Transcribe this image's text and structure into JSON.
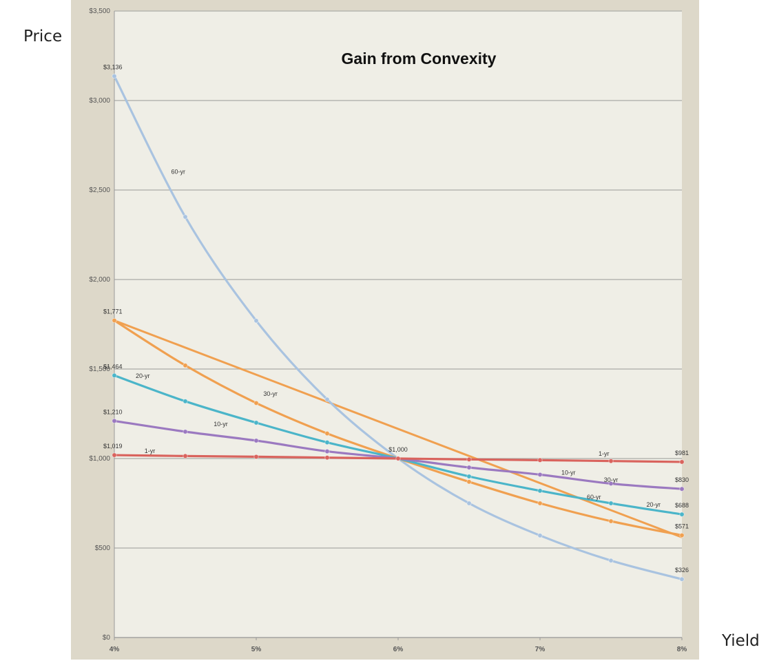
{
  "page": {
    "outer_y_label": "Price",
    "outer_x_label": "Yield"
  },
  "chart_data": {
    "type": "line",
    "title": "Gain from Convexity",
    "xlabel": "",
    "ylabel": "",
    "x": [
      4.0,
      4.5,
      5.0,
      5.5,
      6.0,
      6.5,
      7.0,
      7.5,
      8.0
    ],
    "x_ticks": [
      4,
      5,
      6,
      7,
      8
    ],
    "x_tick_labels": [
      "4%",
      "5%",
      "6%",
      "7%",
      "8%"
    ],
    "ylim": [
      0,
      3500
    ],
    "y_ticks": [
      0,
      500,
      1000,
      1500,
      2000,
      2500,
      3000,
      3500
    ],
    "y_tick_labels": [
      "$0",
      "$500",
      "$1,000",
      "$1,500",
      "$2,000",
      "$2,500",
      "$3,000",
      "$3,500"
    ],
    "grid": true,
    "colors": {
      "plot_background": "#efeee6",
      "outer_background": "#ddd8c9",
      "gridline": "#b5b5b0"
    },
    "series": [
      {
        "name": "60-yr",
        "color": "#a9c3e0",
        "values": [
          3136,
          2350,
          1770,
          1330,
          1000,
          750,
          570,
          430,
          326
        ]
      },
      {
        "name": "30-yr",
        "color": "#f0a050",
        "values": [
          1771,
          1520,
          1310,
          1140,
          1000,
          870,
          750,
          650,
          571
        ]
      },
      {
        "name": "20-yr",
        "color": "#4bb5c9",
        "values": [
          1464,
          1320,
          1200,
          1090,
          1000,
          900,
          820,
          750,
          688
        ]
      },
      {
        "name": "10-yr",
        "color": "#9b79c0",
        "values": [
          1210,
          1150,
          1100,
          1040,
          1000,
          950,
          910,
          860,
          830
        ]
      },
      {
        "name": "1-yr",
        "color": "#d9635d",
        "values": [
          1019,
          1014,
          1010,
          1005,
          1000,
          995,
          991,
          986,
          981
        ]
      }
    ],
    "extra_line": {
      "color": "#f0a050",
      "x": [
        4,
        8
      ],
      "values": [
        1771,
        560
      ]
    },
    "data_labels": [
      {
        "x": 4,
        "y": 3136,
        "text": "$3,136"
      },
      {
        "x": 4,
        "y": 1771,
        "text": "$1,771"
      },
      {
        "x": 4,
        "y": 1464,
        "text": "$1,464"
      },
      {
        "x": 4,
        "y": 1210,
        "text": "$1,210"
      },
      {
        "x": 4,
        "y": 1019,
        "text": "$1,019"
      },
      {
        "x": 6,
        "y": 1000,
        "text": "$1,000"
      },
      {
        "x": 8,
        "y": 981,
        "text": "$981"
      },
      {
        "x": 8,
        "y": 830,
        "text": "$830"
      },
      {
        "x": 8,
        "y": 688,
        "text": "$688"
      },
      {
        "x": 8,
        "y": 571,
        "text": "$571"
      },
      {
        "x": 8,
        "y": 326,
        "text": "$326"
      }
    ],
    "series_labels": [
      {
        "x": 4.45,
        "y": 2590,
        "text": "60-yr"
      },
      {
        "x": 7.38,
        "y": 773,
        "text": "60-yr"
      },
      {
        "x": 5.1,
        "y": 1350,
        "text": "30-yr"
      },
      {
        "x": 7.5,
        "y": 870,
        "text": "30-yr"
      },
      {
        "x": 4.2,
        "y": 1450,
        "text": "20-yr"
      },
      {
        "x": 7.8,
        "y": 730,
        "text": "20-yr"
      },
      {
        "x": 4.75,
        "y": 1180,
        "text": "10-yr"
      },
      {
        "x": 7.2,
        "y": 910,
        "text": "10-yr"
      },
      {
        "x": 4.25,
        "y": 1030,
        "text": "1-yr"
      },
      {
        "x": 7.45,
        "y": 1015,
        "text": "1-yr"
      }
    ]
  }
}
